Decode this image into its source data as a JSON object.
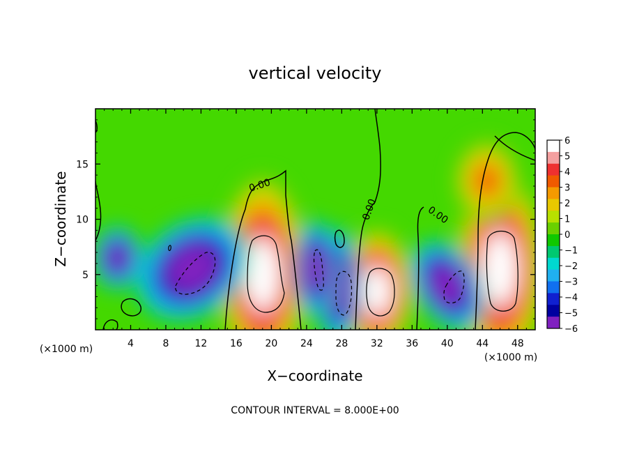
{
  "chart_data": {
    "type": "heatmap",
    "title": "vertical velocity",
    "xlabel": "X−coordinate",
    "ylabel": "Z−coordinate",
    "x_unit_label": "(×1000 m)",
    "x_unit_label_right": "(×1000 m)",
    "footnote": "CONTOUR INTERVAL = 8.000E+00",
    "xlim": [
      0,
      50
    ],
    "ylim": [
      0,
      20
    ],
    "x_ticks": [
      4,
      8,
      12,
      16,
      20,
      24,
      28,
      32,
      36,
      40,
      44,
      48
    ],
    "x_tick_labels": [
      "4",
      "8",
      "12",
      "16",
      "20",
      "24",
      "28",
      "32",
      "36",
      "40",
      "44",
      "48"
    ],
    "y_ticks": [
      5,
      10,
      15
    ],
    "y_tick_labels": [
      "5",
      "10",
      "15"
    ],
    "colorbar": {
      "min": -6,
      "max": 6,
      "tick_labels": [
        "6",
        "5",
        "4",
        "3",
        "2",
        "1",
        "0",
        "−1",
        "−2",
        "−3",
        "−4",
        "−5",
        "−6"
      ],
      "colors": [
        "#ffffff",
        "#f4a0a0",
        "#ee3030",
        "#f05a00",
        "#f59a00",
        "#e8c800",
        "#b8e000",
        "#6ad000",
        "#10c800",
        "#00c870",
        "#00d8d0",
        "#20b0f0",
        "#1070f0",
        "#1020d0",
        "#0000a0",
        "#8020c0"
      ]
    },
    "contour_labels": [
      "0.00",
      "0.00",
      "0.00"
    ],
    "cells": [
      {
        "x": 19,
        "z": 5.0,
        "peak": 12
      },
      {
        "x": 32,
        "z": 3.5,
        "peak": 10
      },
      {
        "x": 46,
        "z": 5.5,
        "peak": 12
      },
      {
        "x": 44.5,
        "z": 13.5,
        "peak": 2.5
      },
      {
        "x": 11,
        "z": 5.5,
        "peak": -11
      },
      {
        "x": 27.5,
        "z": 4.0,
        "peak": -9
      },
      {
        "x": 40.0,
        "z": 4.0,
        "peak": -9
      },
      {
        "x": 25.0,
        "z": 5.5,
        "peak": -8
      },
      {
        "x": 2.5,
        "z": 6.5,
        "peak": -6
      }
    ]
  }
}
